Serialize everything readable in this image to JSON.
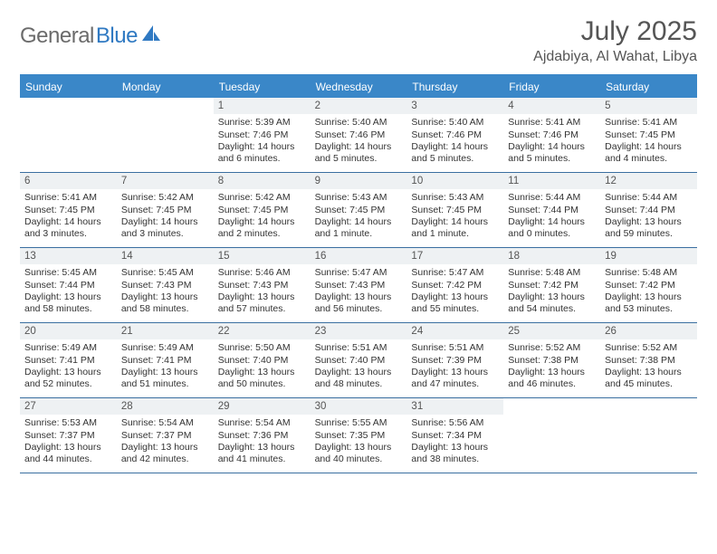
{
  "logo": {
    "word1": "General",
    "word2": "Blue"
  },
  "title": "July 2025",
  "location": "Ajdabiya, Al Wahat, Libya",
  "headerColor": "#3a87c8",
  "dayNames": [
    "Sunday",
    "Monday",
    "Tuesday",
    "Wednesday",
    "Thursday",
    "Friday",
    "Saturday"
  ],
  "weeks": [
    [
      {
        "n": "",
        "sr": "",
        "ss": "",
        "d1": "",
        "d2": ""
      },
      {
        "n": "",
        "sr": "",
        "ss": "",
        "d1": "",
        "d2": ""
      },
      {
        "n": "1",
        "sr": "Sunrise: 5:39 AM",
        "ss": "Sunset: 7:46 PM",
        "d1": "Daylight: 14 hours",
        "d2": "and 6 minutes."
      },
      {
        "n": "2",
        "sr": "Sunrise: 5:40 AM",
        "ss": "Sunset: 7:46 PM",
        "d1": "Daylight: 14 hours",
        "d2": "and 5 minutes."
      },
      {
        "n": "3",
        "sr": "Sunrise: 5:40 AM",
        "ss": "Sunset: 7:46 PM",
        "d1": "Daylight: 14 hours",
        "d2": "and 5 minutes."
      },
      {
        "n": "4",
        "sr": "Sunrise: 5:41 AM",
        "ss": "Sunset: 7:46 PM",
        "d1": "Daylight: 14 hours",
        "d2": "and 5 minutes."
      },
      {
        "n": "5",
        "sr": "Sunrise: 5:41 AM",
        "ss": "Sunset: 7:45 PM",
        "d1": "Daylight: 14 hours",
        "d2": "and 4 minutes."
      }
    ],
    [
      {
        "n": "6",
        "sr": "Sunrise: 5:41 AM",
        "ss": "Sunset: 7:45 PM",
        "d1": "Daylight: 14 hours",
        "d2": "and 3 minutes."
      },
      {
        "n": "7",
        "sr": "Sunrise: 5:42 AM",
        "ss": "Sunset: 7:45 PM",
        "d1": "Daylight: 14 hours",
        "d2": "and 3 minutes."
      },
      {
        "n": "8",
        "sr": "Sunrise: 5:42 AM",
        "ss": "Sunset: 7:45 PM",
        "d1": "Daylight: 14 hours",
        "d2": "and 2 minutes."
      },
      {
        "n": "9",
        "sr": "Sunrise: 5:43 AM",
        "ss": "Sunset: 7:45 PM",
        "d1": "Daylight: 14 hours",
        "d2": "and 1 minute."
      },
      {
        "n": "10",
        "sr": "Sunrise: 5:43 AM",
        "ss": "Sunset: 7:45 PM",
        "d1": "Daylight: 14 hours",
        "d2": "and 1 minute."
      },
      {
        "n": "11",
        "sr": "Sunrise: 5:44 AM",
        "ss": "Sunset: 7:44 PM",
        "d1": "Daylight: 14 hours",
        "d2": "and 0 minutes."
      },
      {
        "n": "12",
        "sr": "Sunrise: 5:44 AM",
        "ss": "Sunset: 7:44 PM",
        "d1": "Daylight: 13 hours",
        "d2": "and 59 minutes."
      }
    ],
    [
      {
        "n": "13",
        "sr": "Sunrise: 5:45 AM",
        "ss": "Sunset: 7:44 PM",
        "d1": "Daylight: 13 hours",
        "d2": "and 58 minutes."
      },
      {
        "n": "14",
        "sr": "Sunrise: 5:45 AM",
        "ss": "Sunset: 7:43 PM",
        "d1": "Daylight: 13 hours",
        "d2": "and 58 minutes."
      },
      {
        "n": "15",
        "sr": "Sunrise: 5:46 AM",
        "ss": "Sunset: 7:43 PM",
        "d1": "Daylight: 13 hours",
        "d2": "and 57 minutes."
      },
      {
        "n": "16",
        "sr": "Sunrise: 5:47 AM",
        "ss": "Sunset: 7:43 PM",
        "d1": "Daylight: 13 hours",
        "d2": "and 56 minutes."
      },
      {
        "n": "17",
        "sr": "Sunrise: 5:47 AM",
        "ss": "Sunset: 7:42 PM",
        "d1": "Daylight: 13 hours",
        "d2": "and 55 minutes."
      },
      {
        "n": "18",
        "sr": "Sunrise: 5:48 AM",
        "ss": "Sunset: 7:42 PM",
        "d1": "Daylight: 13 hours",
        "d2": "and 54 minutes."
      },
      {
        "n": "19",
        "sr": "Sunrise: 5:48 AM",
        "ss": "Sunset: 7:42 PM",
        "d1": "Daylight: 13 hours",
        "d2": "and 53 minutes."
      }
    ],
    [
      {
        "n": "20",
        "sr": "Sunrise: 5:49 AM",
        "ss": "Sunset: 7:41 PM",
        "d1": "Daylight: 13 hours",
        "d2": "and 52 minutes."
      },
      {
        "n": "21",
        "sr": "Sunrise: 5:49 AM",
        "ss": "Sunset: 7:41 PM",
        "d1": "Daylight: 13 hours",
        "d2": "and 51 minutes."
      },
      {
        "n": "22",
        "sr": "Sunrise: 5:50 AM",
        "ss": "Sunset: 7:40 PM",
        "d1": "Daylight: 13 hours",
        "d2": "and 50 minutes."
      },
      {
        "n": "23",
        "sr": "Sunrise: 5:51 AM",
        "ss": "Sunset: 7:40 PM",
        "d1": "Daylight: 13 hours",
        "d2": "and 48 minutes."
      },
      {
        "n": "24",
        "sr": "Sunrise: 5:51 AM",
        "ss": "Sunset: 7:39 PM",
        "d1": "Daylight: 13 hours",
        "d2": "and 47 minutes."
      },
      {
        "n": "25",
        "sr": "Sunrise: 5:52 AM",
        "ss": "Sunset: 7:38 PM",
        "d1": "Daylight: 13 hours",
        "d2": "and 46 minutes."
      },
      {
        "n": "26",
        "sr": "Sunrise: 5:52 AM",
        "ss": "Sunset: 7:38 PM",
        "d1": "Daylight: 13 hours",
        "d2": "and 45 minutes."
      }
    ],
    [
      {
        "n": "27",
        "sr": "Sunrise: 5:53 AM",
        "ss": "Sunset: 7:37 PM",
        "d1": "Daylight: 13 hours",
        "d2": "and 44 minutes."
      },
      {
        "n": "28",
        "sr": "Sunrise: 5:54 AM",
        "ss": "Sunset: 7:37 PM",
        "d1": "Daylight: 13 hours",
        "d2": "and 42 minutes."
      },
      {
        "n": "29",
        "sr": "Sunrise: 5:54 AM",
        "ss": "Sunset: 7:36 PM",
        "d1": "Daylight: 13 hours",
        "d2": "and 41 minutes."
      },
      {
        "n": "30",
        "sr": "Sunrise: 5:55 AM",
        "ss": "Sunset: 7:35 PM",
        "d1": "Daylight: 13 hours",
        "d2": "and 40 minutes."
      },
      {
        "n": "31",
        "sr": "Sunrise: 5:56 AM",
        "ss": "Sunset: 7:34 PM",
        "d1": "Daylight: 13 hours",
        "d2": "and 38 minutes."
      },
      {
        "n": "",
        "sr": "",
        "ss": "",
        "d1": "",
        "d2": ""
      },
      {
        "n": "",
        "sr": "",
        "ss": "",
        "d1": "",
        "d2": ""
      }
    ]
  ]
}
